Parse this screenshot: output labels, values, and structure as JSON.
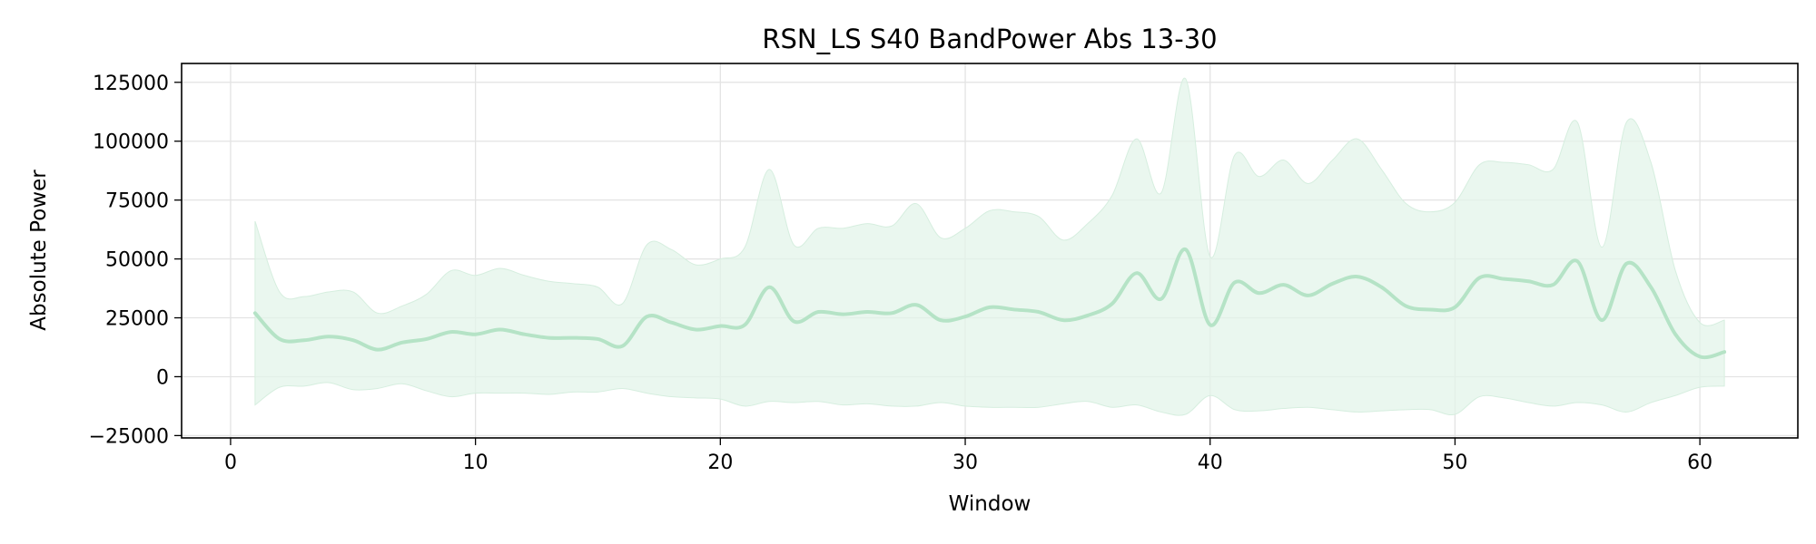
{
  "chart_data": {
    "type": "line",
    "title": "RSN_LS S40 BandPower Abs 13-30",
    "xlabel": "Window",
    "ylabel": "Absolute Power",
    "xlim": [
      -2,
      64
    ],
    "ylim": [
      -26000,
      133000
    ],
    "xticks": [
      0,
      10,
      20,
      30,
      40,
      50,
      60
    ],
    "xtick_labels": [
      "0",
      "10",
      "20",
      "30",
      "40",
      "50",
      "60"
    ],
    "yticks": [
      -25000,
      0,
      25000,
      50000,
      75000,
      100000,
      125000
    ],
    "ytick_labels": [
      "−25000",
      "0",
      "25000",
      "50000",
      "75000",
      "100000",
      "125000"
    ],
    "grid": true,
    "legend": "none",
    "colors": {
      "line": "#b5e3c6",
      "band": "#e3f4ea",
      "band_edge": "#d6eedf"
    },
    "x": [
      1,
      2,
      3,
      4,
      5,
      6,
      7,
      8,
      9,
      10,
      11,
      12,
      13,
      14,
      15,
      16,
      17,
      18,
      19,
      20,
      21,
      22,
      23,
      24,
      25,
      26,
      27,
      28,
      29,
      30,
      31,
      32,
      33,
      34,
      35,
      36,
      37,
      38,
      39,
      40,
      41,
      42,
      43,
      44,
      45,
      46,
      47,
      48,
      49,
      50,
      51,
      52,
      53,
      54,
      55,
      56,
      57,
      58,
      59,
      60,
      61
    ],
    "series": [
      {
        "role": "mean",
        "values": [
          27000,
          16000,
          15500,
          17000,
          15500,
          11500,
          14500,
          16000,
          19000,
          18000,
          20000,
          18000,
          16500,
          16500,
          16000,
          13000,
          25500,
          23000,
          20000,
          21500,
          22000,
          38000,
          23500,
          27500,
          26500,
          27500,
          27000,
          30500,
          24000,
          25500,
          29500,
          28500,
          27500,
          24000,
          26000,
          31000,
          44000,
          33000,
          54000,
          22000,
          40000,
          35500,
          39000,
          34500,
          39500,
          42500,
          38000,
          30000,
          28500,
          29500,
          42000,
          41500,
          40500,
          39000,
          49000,
          24000,
          48000,
          38000,
          18000,
          8500,
          10500
        ]
      },
      {
        "role": "upper",
        "values": [
          66000,
          36000,
          34000,
          36000,
          36000,
          27000,
          30000,
          35000,
          45000,
          43000,
          46000,
          43000,
          40500,
          39500,
          38000,
          31000,
          56000,
          54000,
          47500,
          50000,
          55000,
          88000,
          56000,
          63000,
          63000,
          65000,
          64000,
          73500,
          59000,
          63000,
          70500,
          70000,
          68000,
          58000,
          65000,
          77000,
          101000,
          78000,
          126500,
          51000,
          94000,
          85000,
          92000,
          82000,
          92000,
          101000,
          88000,
          73500,
          70000,
          74000,
          90000,
          91000,
          90000,
          88000,
          108000,
          55000,
          108000,
          91000,
          45000,
          23000,
          24000
        ]
      },
      {
        "role": "lower",
        "values": [
          -12000,
          -4500,
          -4000,
          -2500,
          -5500,
          -5000,
          -3000,
          -6000,
          -8500,
          -7000,
          -7000,
          -7000,
          -7500,
          -6500,
          -6500,
          -5000,
          -7000,
          -8500,
          -9000,
          -9500,
          -12500,
          -10500,
          -11000,
          -10500,
          -12000,
          -11500,
          -12500,
          -12500,
          -11000,
          -12500,
          -13000,
          -13000,
          -13000,
          -11500,
          -10500,
          -13000,
          -12000,
          -15000,
          -16000,
          -8000,
          -14000,
          -14500,
          -13500,
          -13000,
          -14000,
          -15000,
          -14500,
          -14000,
          -14000,
          -16000,
          -8500,
          -9000,
          -11000,
          -12500,
          -11000,
          -12000,
          -15000,
          -11000,
          -8000,
          -4500,
          -4000
        ]
      }
    ]
  }
}
